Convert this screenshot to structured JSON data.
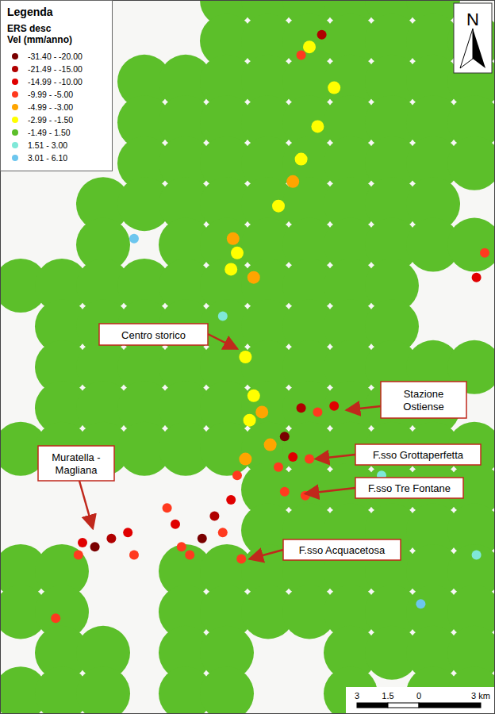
{
  "chart_data": {
    "type": "scatter",
    "title": "Legenda",
    "subtitle": "ERS desc",
    "legend_title": "Vel (mm/anno)",
    "xlim": [
      0,
      24
    ],
    "ylim": [
      0,
      35
    ],
    "tick_labels": false,
    "grid": false,
    "legend": "upper left",
    "marker": "circle",
    "north": "N",
    "series": [
      {
        "name": "-31.40 - -20.00",
        "color": "#7a0000",
        "values": [
          [
            4.6,
            8.2
          ],
          [
            9.8,
            8.6
          ],
          [
            13.8,
            13.6
          ]
        ]
      },
      {
        "name": "-21.49 - -15.00",
        "color": "#b00000",
        "values": [
          [
            5.4,
            8.6
          ],
          [
            10.4,
            9.7
          ],
          [
            14.6,
            15.0
          ],
          [
            15.6,
            33.3
          ]
        ]
      },
      {
        "name": "-14.99 - -10.00",
        "color": "#e00000",
        "values": [
          [
            4.0,
            8.4
          ],
          [
            6.2,
            8.9
          ],
          [
            8.5,
            9.3
          ],
          [
            11.2,
            10.5
          ],
          [
            14.2,
            12.6
          ],
          [
            16.2,
            15.1
          ],
          [
            23.1,
            21.4
          ]
        ]
      },
      {
        "name": "-9.99 - -5.00",
        "color": "#ff3a1f",
        "values": [
          [
            3.8,
            7.8
          ],
          [
            6.5,
            7.8
          ],
          [
            8.1,
            10.1
          ],
          [
            8.8,
            8.2
          ],
          [
            9.2,
            7.8
          ],
          [
            10.8,
            8.9
          ],
          [
            11.5,
            11.7
          ],
          [
            11.7,
            7.6
          ],
          [
            13.5,
            12.1
          ],
          [
            13.8,
            10.9
          ],
          [
            14.8,
            10.7
          ],
          [
            15.0,
            12.5
          ],
          [
            15.4,
            14.8
          ],
          [
            14.6,
            32.3
          ],
          [
            2.7,
            4.7
          ],
          [
            23.5,
            22.6
          ]
        ]
      },
      {
        "name": "-4.99 - -3.00",
        "color": "#ffa500",
        "values": [
          [
            11.9,
            12.5
          ],
          [
            13.1,
            13.2
          ],
          [
            12.7,
            14.8
          ],
          [
            11.3,
            23.3
          ],
          [
            12.3,
            21.4
          ],
          [
            14.2,
            26.1
          ]
        ]
      },
      {
        "name": "-2.99 - -1.50",
        "color": "#ffff00",
        "values": [
          [
            11.9,
            17.5
          ],
          [
            12.3,
            15.6
          ],
          [
            12.1,
            14.4
          ],
          [
            11.5,
            22.6
          ],
          [
            11.2,
            21.8
          ],
          [
            14.6,
            27.2
          ],
          [
            15.4,
            28.8
          ],
          [
            13.5,
            24.9
          ],
          [
            16.2,
            30.7
          ],
          [
            15.0,
            32.7
          ]
        ]
      },
      {
        "name": "-1.49 - 1.50",
        "color": "#5cbf2a",
        "values": [
          [
            11,
            35
          ],
          [
            13,
            35
          ],
          [
            15,
            35
          ],
          [
            17,
            35
          ],
          [
            19,
            35
          ],
          [
            21,
            35
          ],
          [
            11,
            33
          ],
          [
            13,
            33
          ],
          [
            15,
            33
          ],
          [
            17,
            33
          ],
          [
            19,
            33
          ],
          [
            21,
            33
          ],
          [
            23,
            33
          ],
          [
            7,
            31
          ],
          [
            9,
            31
          ],
          [
            11,
            31
          ],
          [
            13,
            31
          ],
          [
            15,
            31
          ],
          [
            17,
            31
          ],
          [
            19,
            31
          ],
          [
            21,
            31
          ],
          [
            23,
            31
          ],
          [
            7,
            29
          ],
          [
            9,
            29
          ],
          [
            11,
            29
          ],
          [
            13,
            29
          ],
          [
            15,
            29
          ],
          [
            17,
            29
          ],
          [
            19,
            29
          ],
          [
            21,
            29
          ],
          [
            23,
            29
          ],
          [
            7,
            27
          ],
          [
            9,
            27
          ],
          [
            11,
            27
          ],
          [
            13,
            27
          ],
          [
            15,
            27
          ],
          [
            17,
            27
          ],
          [
            19,
            27
          ],
          [
            21,
            27
          ],
          [
            23,
            27
          ],
          [
            5,
            25
          ],
          [
            7,
            25
          ],
          [
            9,
            25
          ],
          [
            11,
            25
          ],
          [
            13,
            25
          ],
          [
            15,
            25
          ],
          [
            17,
            25
          ],
          [
            19,
            25
          ],
          [
            21,
            25
          ],
          [
            5,
            23
          ],
          [
            9,
            23
          ],
          [
            11,
            23
          ],
          [
            13,
            23
          ],
          [
            15,
            23
          ],
          [
            17,
            23
          ],
          [
            19,
            23
          ],
          [
            21,
            23
          ],
          [
            23,
            23
          ],
          [
            1,
            21
          ],
          [
            3,
            21
          ],
          [
            5,
            21
          ],
          [
            7,
            21
          ],
          [
            9,
            21
          ],
          [
            11,
            21
          ],
          [
            13,
            21
          ],
          [
            15,
            21
          ],
          [
            17,
            21
          ],
          [
            19,
            21
          ],
          [
            3,
            19
          ],
          [
            5,
            19
          ],
          [
            7,
            19
          ],
          [
            9,
            19
          ],
          [
            11,
            19
          ],
          [
            13,
            19
          ],
          [
            15,
            19
          ],
          [
            17,
            19
          ],
          [
            19,
            19
          ],
          [
            3,
            17
          ],
          [
            5,
            17
          ],
          [
            7,
            17
          ],
          [
            9,
            17
          ],
          [
            11,
            17
          ],
          [
            13,
            17
          ],
          [
            15,
            17
          ],
          [
            17,
            17
          ],
          [
            19,
            17
          ],
          [
            21,
            17
          ],
          [
            23,
            17
          ],
          [
            3,
            15
          ],
          [
            5,
            15
          ],
          [
            7,
            15
          ],
          [
            9,
            15
          ],
          [
            11,
            15
          ],
          [
            13,
            15
          ],
          [
            15,
            15
          ],
          [
            17,
            15
          ],
          [
            19,
            15
          ],
          [
            21,
            15
          ],
          [
            1,
            13
          ],
          [
            3,
            13
          ],
          [
            5,
            13
          ],
          [
            7,
            13
          ],
          [
            9,
            13
          ],
          [
            11,
            13
          ],
          [
            13,
            13
          ],
          [
            15,
            13
          ],
          [
            17,
            13
          ],
          [
            19,
            13
          ],
          [
            21,
            13
          ],
          [
            23,
            13
          ],
          [
            13,
            11
          ],
          [
            15,
            11
          ],
          [
            17,
            11
          ],
          [
            19,
            11
          ],
          [
            21,
            11
          ],
          [
            23,
            11
          ],
          [
            13,
            9
          ],
          [
            15,
            9
          ],
          [
            17,
            9
          ],
          [
            19,
            9
          ],
          [
            21,
            9
          ],
          [
            23,
            9
          ],
          [
            1,
            7
          ],
          [
            3,
            7
          ],
          [
            9,
            7
          ],
          [
            11,
            7
          ],
          [
            13,
            7
          ],
          [
            15,
            7
          ],
          [
            17,
            7
          ],
          [
            19,
            7
          ],
          [
            21,
            7
          ],
          [
            23,
            7
          ],
          [
            1,
            5
          ],
          [
            3,
            5
          ],
          [
            9,
            5
          ],
          [
            11,
            5
          ],
          [
            13,
            5
          ],
          [
            15,
            5
          ],
          [
            17,
            5
          ],
          [
            19,
            5
          ],
          [
            21,
            5
          ],
          [
            23,
            5
          ],
          [
            3,
            3
          ],
          [
            5,
            3
          ],
          [
            9,
            3
          ],
          [
            11,
            3
          ],
          [
            17,
            3
          ],
          [
            19,
            3
          ],
          [
            21,
            3
          ],
          [
            23,
            3
          ],
          [
            1,
            1
          ],
          [
            3,
            1
          ],
          [
            5,
            1
          ],
          [
            9,
            1
          ],
          [
            11,
            1
          ],
          [
            17,
            1
          ],
          [
            21,
            1
          ],
          [
            23,
            1
          ]
        ]
      },
      {
        "name": "1.51 - 3.00",
        "color": "#7fe8d8",
        "values": [
          [
            10.8,
            19.5
          ],
          [
            18.5,
            11.7
          ],
          [
            23.1,
            7.8
          ]
        ]
      },
      {
        "name": "3.01 - 6.10",
        "color": "#6cc6ee",
        "values": [
          [
            6.5,
            23.3
          ],
          [
            20.4,
            5.4
          ]
        ]
      }
    ],
    "annotations": [
      {
        "text": "Centro storico",
        "x": 11.5,
        "y": 17.9
      },
      {
        "text": "Stazione\nOstiense",
        "x": 16.8,
        "y": 14.9
      },
      {
        "text": "F.sso Grottaperfetta",
        "x": 15.3,
        "y": 12.5
      },
      {
        "text": "F.sso Tre Fontane",
        "x": 14.8,
        "y": 10.8
      },
      {
        "text": "F.sso Acquacetosa",
        "x": 12.1,
        "y": 7.6
      },
      {
        "text": "Muratella -\nMagliana",
        "x": 4.5,
        "y": 9.1
      }
    ],
    "scale_bar": {
      "ticks": [
        {
          "value": -3,
          "label": "3"
        },
        {
          "value": -1.5,
          "label": "1.5"
        },
        0,
        {
          "value": 3,
          "label": "3 km"
        }
      ]
    }
  }
}
